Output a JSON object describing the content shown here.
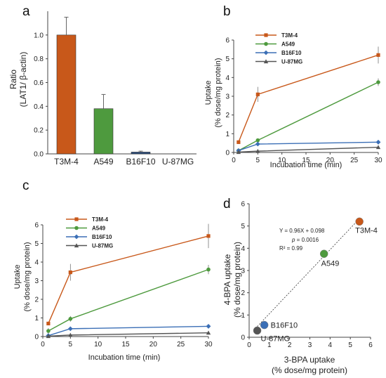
{
  "panels": {
    "a": {
      "letter": "a"
    },
    "b": {
      "letter": "b"
    },
    "c": {
      "letter": "c"
    },
    "d": {
      "letter": "d"
    }
  },
  "colors": {
    "T3M-4": "#C8581A",
    "A549": "#4E9A3E",
    "B16F10": "#3B6FB6",
    "U-87MG": "#555555",
    "bar_B16F10": "#2A4B7C"
  },
  "chart_data": [
    {
      "id": "a",
      "type": "bar",
      "categories": [
        "T3M-4",
        "A549",
        "B16F10",
        "U-87MG"
      ],
      "values": [
        1.0,
        0.38,
        0.015,
        0.0
      ],
      "errors": [
        0.15,
        0.12,
        0.008,
        0.0
      ],
      "ylabel_line1": "Ratio",
      "ylabel_line2": "(LAT1/ β-actin)",
      "ylim": [
        0,
        1.2
      ],
      "yticks": [
        "0.0",
        "0.2",
        "0.4",
        "0.6",
        "0.8",
        "1.0"
      ],
      "grid": false
    },
    {
      "id": "b",
      "type": "line",
      "x": [
        1,
        5,
        30
      ],
      "series": [
        {
          "name": "T3M-4",
          "marker": "square",
          "values": [
            0.55,
            3.1,
            5.2
          ],
          "errors": [
            0.08,
            0.4,
            0.45
          ]
        },
        {
          "name": "A549",
          "marker": "circle",
          "values": [
            0.1,
            0.65,
            3.75
          ],
          "errors": [
            0.03,
            0.1,
            0.2
          ]
        },
        {
          "name": "B16F10",
          "marker": "diamond",
          "values": [
            0.1,
            0.45,
            0.55
          ],
          "errors": [
            0.02,
            0.04,
            0.04
          ]
        },
        {
          "name": "U-87MG",
          "marker": "triangle",
          "values": [
            0.02,
            0.07,
            0.28
          ],
          "errors": [
            0.01,
            0.02,
            0.03
          ]
        }
      ],
      "xlabel": "Incubation time (min)",
      "ylabel_line1": "Uptake",
      "ylabel_line2": "(% dose/mg protein)",
      "xlim": [
        0,
        30
      ],
      "ylim": [
        0,
        6
      ],
      "xticks": [
        "0",
        "5",
        "10",
        "15",
        "20",
        "25",
        "30"
      ],
      "yticks": [
        "0",
        "1",
        "2",
        "3",
        "4",
        "5",
        "6"
      ],
      "legend": "top-left",
      "grid": false
    },
    {
      "id": "c",
      "type": "line",
      "x": [
        1,
        5,
        30
      ],
      "series": [
        {
          "name": "T3M-4",
          "marker": "square",
          "values": [
            0.7,
            3.45,
            5.4
          ],
          "errors": [
            0.05,
            0.45,
            0.65
          ]
        },
        {
          "name": "A549",
          "marker": "circle",
          "values": [
            0.3,
            0.95,
            3.6
          ],
          "errors": [
            0.15,
            0.15,
            0.25
          ]
        },
        {
          "name": "B16F10",
          "marker": "diamond",
          "values": [
            0.05,
            0.42,
            0.55
          ],
          "errors": [
            0.02,
            0.06,
            0.05
          ]
        },
        {
          "name": "U-87MG",
          "marker": "triangle",
          "values": [
            0.02,
            0.08,
            0.2
          ],
          "errors": [
            0.01,
            0.02,
            0.02
          ]
        }
      ],
      "xlabel": "Incubation time (min)",
      "ylabel_line1": "Uptake",
      "ylabel_line2": "(% dose/mg protein)",
      "xlim": [
        0,
        30
      ],
      "ylim": [
        0,
        6
      ],
      "xticks": [
        "0",
        "5",
        "10",
        "15",
        "20",
        "25",
        "30"
      ],
      "yticks": [
        "0",
        "1",
        "2",
        "3",
        "4",
        "5",
        "6"
      ],
      "legend": "top-left",
      "grid": false
    },
    {
      "id": "d",
      "type": "scatter",
      "points": [
        {
          "name": "T3M-4",
          "x": 5.45,
          "y": 5.2
        },
        {
          "name": "A549",
          "x": 3.7,
          "y": 3.75
        },
        {
          "name": "B16F10",
          "x": 0.75,
          "y": 0.55
        },
        {
          "name": "U-87MG",
          "x": 0.4,
          "y": 0.3
        }
      ],
      "fit": {
        "slope": 0.96,
        "intercept": 0.098,
        "x_from": 0.4,
        "x_to": 5.45
      },
      "equation": "Y = 0.96X + 0.098",
      "p_symbol": "p",
      "p_value": " = 0.0016",
      "r2": "R² = 0.99",
      "xlabel_line1": "3-BPA uptake",
      "xlabel_line2": "(% dose/mg protein)",
      "ylabel_line1": "4-BPA uptake",
      "ylabel_line2": "(% dose/mg protein)",
      "xlim": [
        0,
        6
      ],
      "ylim": [
        0,
        6
      ],
      "xticks": [
        "0",
        "1",
        "2",
        "3",
        "4",
        "5",
        "6"
      ],
      "yticks": [
        "0",
        "1",
        "2",
        "3",
        "4",
        "5",
        "6"
      ],
      "grid": false
    }
  ]
}
